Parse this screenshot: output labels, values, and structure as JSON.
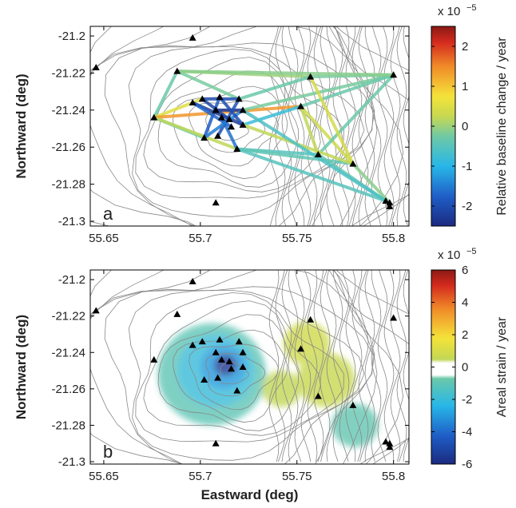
{
  "chart_data": [
    {
      "type": "network",
      "panel_label": "a",
      "y_label": "Northward (deg)",
      "xlim": [
        55.643,
        55.808
      ],
      "ylim": [
        -21.3026,
        -21.1948
      ],
      "xticks": [
        55.65,
        55.7,
        55.75,
        55.8
      ],
      "yticks": [
        -21.2,
        -21.22,
        -21.24,
        -21.26,
        -21.28,
        -21.3
      ],
      "stations": {
        "x": [
          55.696,
          55.646,
          55.688,
          55.676,
          55.696,
          55.701,
          55.71,
          55.72,
          55.708,
          55.711,
          55.715,
          55.722,
          55.722,
          55.716,
          55.702,
          55.709,
          55.719,
          55.757,
          55.752,
          55.8,
          55.761,
          55.779,
          55.708,
          55.796,
          55.798,
          55.798
        ],
        "y": [
          -21.201,
          -21.217,
          -21.219,
          -21.244,
          -21.236,
          -21.234,
          -21.233,
          -21.234,
          -21.24,
          -21.244,
          -21.245,
          -21.24,
          -21.248,
          -21.249,
          -21.255,
          -21.254,
          -21.261,
          -21.222,
          -21.238,
          -21.221,
          -21.264,
          -21.269,
          -21.29,
          -21.289,
          -21.29,
          -21.292
        ]
      },
      "baselines": {
        "from": [
          2,
          2,
          2,
          3,
          3,
          3,
          3,
          5,
          6,
          4,
          8,
          9,
          7,
          10,
          13,
          11,
          12,
          7,
          11,
          12,
          16,
          16,
          18,
          18,
          17,
          19,
          20,
          21,
          12,
          16,
          2,
          11,
          18,
          17
        ],
        "to": [
          3,
          7,
          17,
          5,
          14,
          18,
          16,
          7,
          14,
          12,
          11,
          16,
          15,
          5,
          4,
          14,
          6,
          17,
          19,
          18,
          20,
          21,
          19,
          21,
          19,
          20,
          23,
          24,
          21,
          23,
          19,
          23,
          20,
          21
        ],
        "values": [
          -0.3,
          -0.2,
          0.0,
          0.5,
          -0.4,
          1.4,
          0.2,
          -2.0,
          -1.8,
          -2.2,
          -2.3,
          -1.6,
          -1.9,
          -2.1,
          -1.7,
          -1.5,
          -2.0,
          -0.3,
          -0.2,
          -0.8,
          -0.5,
          -0.4,
          -0.3,
          0.3,
          -0.2,
          -0.3,
          -0.4,
          -0.1,
          0.2,
          -0.5,
          -0.1,
          -0.6,
          0.2,
          0.4
        ]
      },
      "colorbar": {
        "label": "Relative baseline change / year",
        "lim": [
          -2.5,
          2.5
        ],
        "ticks": [
          -2,
          -1,
          0,
          1,
          2
        ],
        "multiplier": "x 10",
        "exponent": "−5"
      }
    },
    {
      "type": "contour",
      "panel_label": "b",
      "x_label": "Eastward (deg)",
      "y_label": "Northward (deg)",
      "xlim": [
        55.643,
        55.808
      ],
      "ylim": [
        -21.3013,
        -21.1947
      ],
      "xticks": [
        55.65,
        55.7,
        55.75,
        55.8
      ],
      "yticks": [
        -21.2,
        -21.22,
        -21.24,
        -21.26,
        -21.28,
        -21.3
      ],
      "stations": {
        "x": [
          55.696,
          55.646,
          55.688,
          55.676,
          55.696,
          55.701,
          55.71,
          55.72,
          55.708,
          55.711,
          55.715,
          55.722,
          55.722,
          55.716,
          55.702,
          55.709,
          55.719,
          55.757,
          55.752,
          55.8,
          55.761,
          55.779,
          55.708,
          55.796,
          55.798,
          55.798
        ],
        "y": [
          -21.201,
          -21.217,
          -21.219,
          -21.244,
          -21.236,
          -21.234,
          -21.233,
          -21.234,
          -21.24,
          -21.244,
          -21.245,
          -21.24,
          -21.248,
          -21.249,
          -21.255,
          -21.254,
          -21.261,
          -21.222,
          -21.238,
          -21.221,
          -21.264,
          -21.269,
          -21.29,
          -21.289,
          -21.29,
          -21.292
        ]
      },
      "patches": {
        "x": [
          55.706,
          55.708,
          55.712,
          55.713,
          55.755,
          55.765,
          55.742,
          55.78
        ],
        "y": [
          -21.252,
          -21.25,
          -21.248,
          -21.247,
          -21.235,
          -21.255,
          -21.26,
          -21.28
        ],
        "r": [
          0.028,
          0.02,
          0.012,
          0.006,
          0.012,
          0.015,
          0.01,
          0.012
        ],
        "values": [
          -1,
          -2,
          -3,
          -5.5,
          0.8,
          0.6,
          0.5,
          -0.9
        ]
      },
      "colorbar": {
        "label": "Areal strain / year",
        "lim": [
          -6,
          6
        ],
        "ticks": [
          -6,
          -4,
          -2,
          0,
          2,
          4,
          6
        ],
        "multiplier": "x 10",
        "exponent": "−5"
      }
    }
  ]
}
